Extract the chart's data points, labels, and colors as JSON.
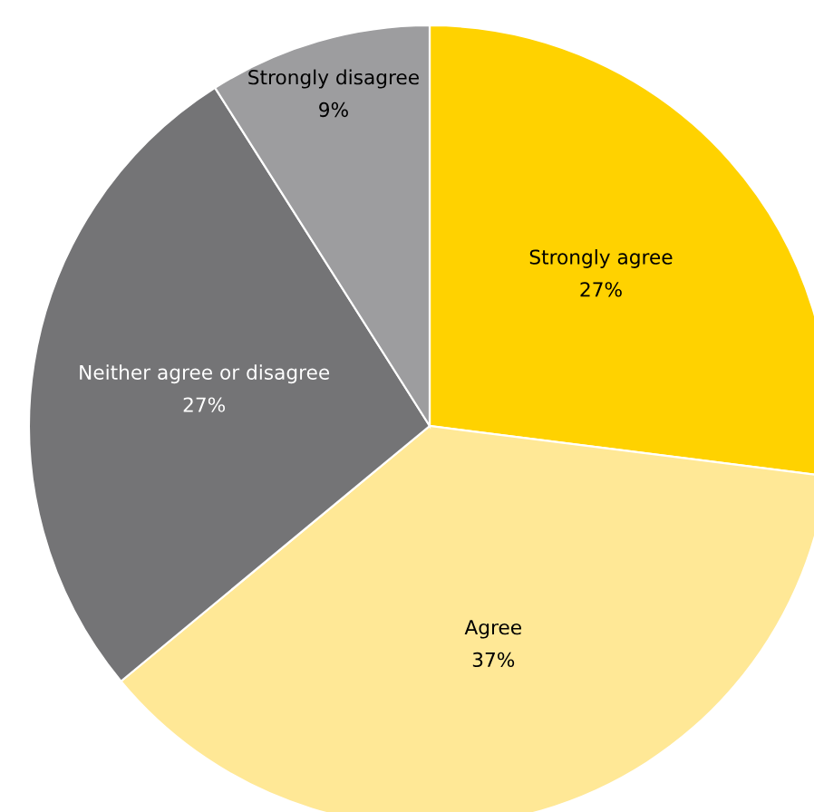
{
  "chart_data": {
    "type": "pie",
    "categories": [
      "Strongly agree",
      "Agree",
      "Neither agree or disagree",
      "Strongly disagree"
    ],
    "values": [
      27,
      37,
      27,
      9
    ],
    "value_labels": [
      "27%",
      "37%",
      "27%",
      "9%"
    ],
    "colors": [
      "#ffd200",
      "#ffe896",
      "#747476",
      "#9d9d9f"
    ]
  }
}
